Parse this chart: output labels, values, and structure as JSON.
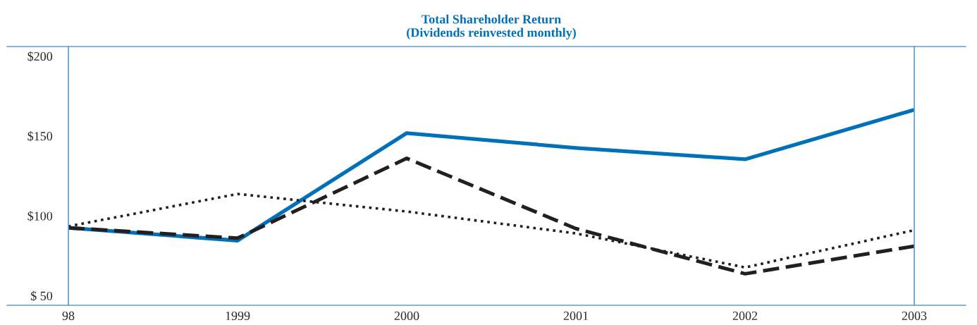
{
  "chart_data": {
    "type": "line",
    "title": "Total Shareholder Return\n(Dividends reinvested monthly)",
    "categories": [
      "98",
      "1999",
      "2000",
      "2001",
      "2002",
      "2003"
    ],
    "series": [
      {
        "color": "#0070b8",
        "line_style": "solid",
        "values": [
          92.5,
          84.5,
          151.8,
          142.5,
          135.4,
          166.4
        ]
      },
      {
        "color": "#231f20",
        "line_style": "dashed",
        "values": [
          92.5,
          86,
          136,
          92,
          63.7,
          81
        ]
      },
      {
        "color": "#231f20",
        "line_style": "dotted",
        "values": [
          93.4,
          113.7,
          102.7,
          89,
          67.7,
          91
        ]
      }
    ],
    "ylim": [
      44,
      206
    ],
    "yticks": [
      {
        "value": 200,
        "label": "$200"
      },
      {
        "value": 150,
        "label": "$150"
      },
      {
        "value": 100,
        "label": "$100"
      },
      {
        "value": 50,
        "label": "$ 50"
      }
    ],
    "grid": false,
    "legend": false,
    "marker": "none"
  }
}
